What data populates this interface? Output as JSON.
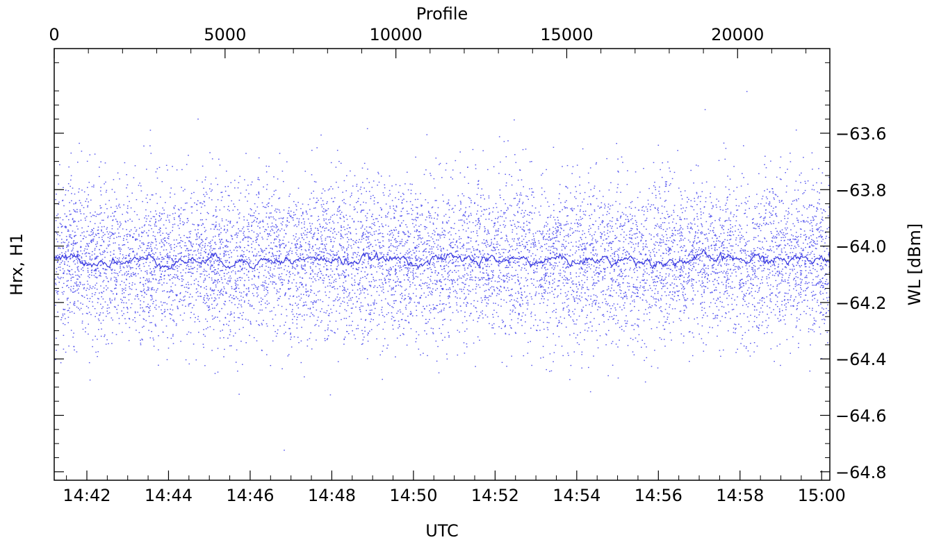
{
  "chart_data": {
    "type": "scatter",
    "title": "",
    "top_axis": {
      "label": "Profile",
      "range": [
        0,
        22700
      ],
      "ticks": [
        0,
        5000,
        10000,
        15000,
        20000
      ],
      "tick_labels": [
        "0",
        "5000",
        "10000",
        "15000",
        "20000"
      ]
    },
    "bottom_axis": {
      "label": "UTC",
      "range_minutes": [
        881.2,
        900.2
      ],
      "ticks_minutes": [
        882,
        884,
        886,
        888,
        890,
        892,
        894,
        896,
        898,
        900
      ],
      "tick_labels": [
        "14:42",
        "14:44",
        "14:46",
        "14:48",
        "14:50",
        "14:52",
        "14:54",
        "14:56",
        "14:58",
        "15:00"
      ]
    },
    "left_axis": {
      "label": "Hrx, H1"
    },
    "right_axis": {
      "label": "WL [dBm]",
      "range": [
        -64.83,
        -63.3
      ],
      "ticks": [
        -63.6,
        -63.8,
        -64.0,
        -64.2,
        -64.4,
        -64.6,
        -64.8
      ],
      "tick_labels": [
        "−63.6",
        "−63.8",
        "−64.0",
        "−64.2",
        "−64.4",
        "−64.6",
        "−64.8"
      ]
    },
    "grid": false,
    "series": [
      {
        "kind": "scatter-points",
        "color": "#5555ee",
        "count": 22700,
        "center": -64.05,
        "spread_sd": 0.14
      },
      {
        "kind": "running-mean-line",
        "color": "#3333dd",
        "level": -64.05,
        "range": [
          -64.08,
          -64.0
        ]
      }
    ]
  }
}
